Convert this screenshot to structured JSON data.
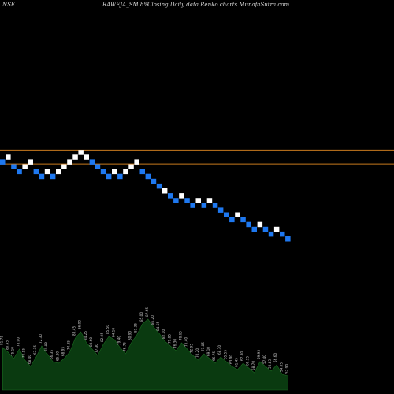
{
  "header": {
    "exchange": "NSE",
    "symbol_text": "RAWEJA_SM 8%",
    "description": "Closing Daily data  Renko  charts MunafaSutra.com"
  },
  "colors": {
    "background": "#000000",
    "up_brick": "#ffffff",
    "down_brick": "#1e78f0",
    "resistance_line": "#c87a1e",
    "volume_fill": "#0a3a10",
    "volume_line": "#1a6a20",
    "label_text": "#c8c8c8"
  },
  "chart_data": {
    "type": "renko",
    "brick_size_percent": 8,
    "bricks": [
      {
        "level": 16,
        "dir": "down"
      },
      {
        "level": 17,
        "dir": "up"
      },
      {
        "level": 15,
        "dir": "down"
      },
      {
        "level": 14,
        "dir": "down"
      },
      {
        "level": 15,
        "dir": "up"
      },
      {
        "level": 16,
        "dir": "up"
      },
      {
        "level": 14,
        "dir": "down"
      },
      {
        "level": 13,
        "dir": "down"
      },
      {
        "level": 14,
        "dir": "up"
      },
      {
        "level": 13,
        "dir": "down"
      },
      {
        "level": 14,
        "dir": "up"
      },
      {
        "level": 15,
        "dir": "up"
      },
      {
        "level": 16,
        "dir": "up"
      },
      {
        "level": 17,
        "dir": "up"
      },
      {
        "level": 18,
        "dir": "up"
      },
      {
        "level": 17,
        "dir": "up"
      },
      {
        "level": 16,
        "dir": "down"
      },
      {
        "level": 15,
        "dir": "down"
      },
      {
        "level": 14,
        "dir": "down"
      },
      {
        "level": 13,
        "dir": "down"
      },
      {
        "level": 14,
        "dir": "up"
      },
      {
        "level": 13,
        "dir": "down"
      },
      {
        "level": 14,
        "dir": "up"
      },
      {
        "level": 15,
        "dir": "up"
      },
      {
        "level": 16,
        "dir": "up"
      },
      {
        "level": 14,
        "dir": "down"
      },
      {
        "level": 13,
        "dir": "down"
      },
      {
        "level": 12,
        "dir": "down"
      },
      {
        "level": 11,
        "dir": "down"
      },
      {
        "level": 10,
        "dir": "up"
      },
      {
        "level": 9,
        "dir": "down"
      },
      {
        "level": 8,
        "dir": "down"
      },
      {
        "level": 9,
        "dir": "up"
      },
      {
        "level": 8,
        "dir": "down"
      },
      {
        "level": 7,
        "dir": "down"
      },
      {
        "level": 8,
        "dir": "up"
      },
      {
        "level": 7,
        "dir": "down"
      },
      {
        "level": 8,
        "dir": "up"
      },
      {
        "level": 7,
        "dir": "down"
      },
      {
        "level": 6,
        "dir": "down"
      },
      {
        "level": 5,
        "dir": "down"
      },
      {
        "level": 4,
        "dir": "down"
      },
      {
        "level": 5,
        "dir": "up"
      },
      {
        "level": 4,
        "dir": "down"
      },
      {
        "level": 3,
        "dir": "down"
      },
      {
        "level": 2,
        "dir": "down"
      },
      {
        "level": 3,
        "dir": "up"
      },
      {
        "level": 2,
        "dir": "down"
      },
      {
        "level": 1,
        "dir": "down"
      },
      {
        "level": 2,
        "dir": "up"
      },
      {
        "level": 1,
        "dir": "down"
      },
      {
        "level": 0,
        "dir": "down"
      }
    ],
    "resistance_levels_brick_units": [
      18.5,
      15.6
    ],
    "volume": [
      {
        "v": 54,
        "label": "81.75"
      },
      {
        "v": 48,
        "label": "80.45"
      },
      {
        "v": 40,
        "label": "75.10"
      },
      {
        "v": 52,
        "label": "78.00"
      },
      {
        "v": 38,
        "label": "70.55"
      },
      {
        "v": 30,
        "label": "68.40"
      },
      {
        "v": 42,
        "label": "67.15"
      },
      {
        "v": 56,
        "label": "72.30"
      },
      {
        "v": 46,
        "label": "69.80"
      },
      {
        "v": 36,
        "label": "66.35"
      },
      {
        "v": 34,
        "label": "65.20"
      },
      {
        "v": 40,
        "label": "68.95"
      },
      {
        "v": 48,
        "label": "74.85"
      },
      {
        "v": 66,
        "label": "83.45"
      },
      {
        "v": 74,
        "label": "86.00"
      },
      {
        "v": 60,
        "label": "84.25"
      },
      {
        "v": 52,
        "label": "80.60"
      },
      {
        "v": 44,
        "label": "77.30"
      },
      {
        "v": 58,
        "label": "82.95"
      },
      {
        "v": 68,
        "label": "85.50"
      },
      {
        "v": 64,
        "label": "84.10"
      },
      {
        "v": 54,
        "label": "79.40"
      },
      {
        "v": 46,
        "label": "76.75"
      },
      {
        "v": 60,
        "label": "80.90"
      },
      {
        "v": 70,
        "label": "81.35"
      },
      {
        "v": 84,
        "label": "85.00"
      },
      {
        "v": 90,
        "label": "87.65"
      },
      {
        "v": 80,
        "label": "86.20"
      },
      {
        "v": 72,
        "label": "84.55"
      },
      {
        "v": 62,
        "label": "82.10"
      },
      {
        "v": 56,
        "label": "79.85"
      },
      {
        "v": 50,
        "label": "76.30"
      },
      {
        "v": 60,
        "label": "78.65"
      },
      {
        "v": 52,
        "label": "75.40"
      },
      {
        "v": 44,
        "label": "72.95"
      },
      {
        "v": 38,
        "label": "70.20"
      },
      {
        "v": 46,
        "label": "71.85"
      },
      {
        "v": 40,
        "label": "69.10"
      },
      {
        "v": 34,
        "label": "66.75"
      },
      {
        "v": 42,
        "label": "68.30"
      },
      {
        "v": 36,
        "label": "65.55"
      },
      {
        "v": 30,
        "label": "63.90"
      },
      {
        "v": 26,
        "label": "61.45"
      },
      {
        "v": 34,
        "label": "62.80"
      },
      {
        "v": 28,
        "label": "60.15"
      },
      {
        "v": 22,
        "label": "58.70"
      },
      {
        "v": 36,
        "label": "59.95"
      },
      {
        "v": 30,
        "label": "57.40"
      },
      {
        "v": 24,
        "label": "55.85"
      },
      {
        "v": 32,
        "label": "56.60"
      },
      {
        "v": 20,
        "label": "54.05"
      },
      {
        "v": 18,
        "label": "52.90"
      }
    ]
  }
}
